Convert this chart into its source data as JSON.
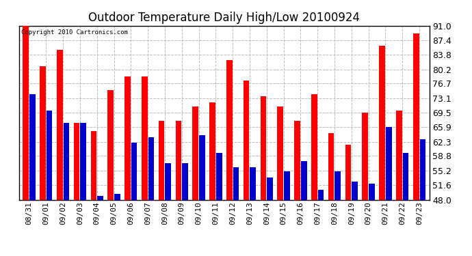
{
  "title": "Outdoor Temperature Daily High/Low 20100924",
  "copyright": "Copyright 2010 Cartronics.com",
  "dates": [
    "08/31",
    "09/01",
    "09/02",
    "09/03",
    "09/04",
    "09/05",
    "09/06",
    "09/07",
    "09/08",
    "09/09",
    "09/10",
    "09/11",
    "09/12",
    "09/13",
    "09/14",
    "09/15",
    "09/16",
    "09/17",
    "09/18",
    "09/19",
    "09/20",
    "09/21",
    "09/22",
    "09/23"
  ],
  "highs": [
    91.0,
    81.0,
    85.0,
    67.0,
    65.0,
    75.0,
    78.5,
    78.5,
    67.5,
    67.5,
    71.0,
    72.0,
    82.5,
    77.5,
    73.5,
    71.0,
    67.5,
    74.0,
    64.5,
    61.5,
    69.5,
    86.0,
    70.0,
    89.0
  ],
  "lows": [
    74.0,
    70.0,
    67.0,
    67.0,
    49.0,
    49.5,
    62.0,
    63.5,
    57.0,
    57.0,
    64.0,
    59.5,
    56.0,
    56.0,
    53.5,
    55.0,
    57.5,
    50.5,
    55.0,
    52.5,
    52.0,
    66.0,
    59.5,
    63.0
  ],
  "high_color": "#ff0000",
  "low_color": "#0000cc",
  "ylim_min": 48.0,
  "ylim_max": 91.0,
  "yticks": [
    48.0,
    51.6,
    55.2,
    58.8,
    62.3,
    65.9,
    69.5,
    73.1,
    76.7,
    80.2,
    83.8,
    87.4,
    91.0
  ],
  "bg_color": "#ffffff",
  "grid_color": "#bbbbbb",
  "title_fontsize": 12,
  "tick_fontsize": 8,
  "ytick_fontsize": 9
}
